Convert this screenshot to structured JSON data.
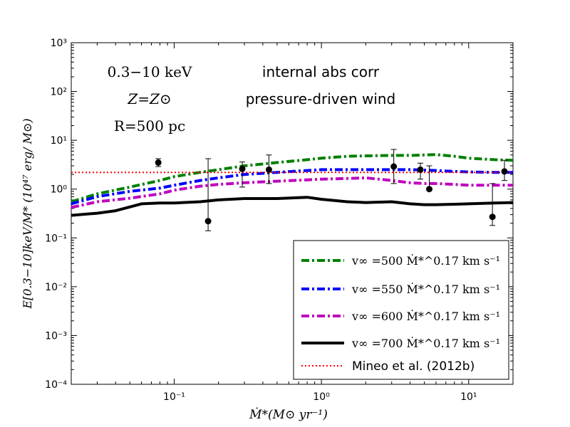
{
  "chart_data": {
    "type": "line",
    "x_scale": "log",
    "y_scale": "log",
    "xlim": [
      0.02,
      20
    ],
    "ylim": [
      0.0001,
      1000
    ],
    "xlabel": "Ṁ*(M⊙ yr⁻¹)",
    "ylabel": "E[0.3−10]keV/M* (10⁴⁷ erg/ M⊙)",
    "x_ticks": [
      "10⁻¹",
      "10⁰",
      "10¹"
    ],
    "y_ticks": [
      "10⁻⁴",
      "10⁻³",
      "10⁻²",
      "10⁻¹",
      "10⁰",
      "10¹",
      "10²",
      "10³"
    ],
    "annotations": {
      "band": "0.3−10 keV",
      "metallicity": "Z=Z⊙",
      "radius": "R=500 pc",
      "absorption": "internal abs corr",
      "wind": "pressure-driven wind"
    },
    "legend_position": "lower-right",
    "series": [
      {
        "name": "v∞ =500 Ṁ*^0.17 km s⁻¹",
        "color": "#008000",
        "dash": "dashdot",
        "x": [
          0.02,
          0.03,
          0.05,
          0.08,
          0.1,
          0.15,
          0.2,
          0.3,
          0.5,
          0.8,
          1.0,
          1.5,
          2.0,
          3.0,
          4.0,
          5.0,
          6.0,
          8.0,
          10.0,
          15.0,
          20.0
        ],
        "y": [
          0.55,
          0.8,
          1.1,
          1.5,
          1.8,
          2.2,
          2.5,
          3.0,
          3.5,
          4.0,
          4.3,
          4.7,
          4.8,
          4.9,
          4.9,
          5.0,
          5.1,
          4.7,
          4.3,
          4.0,
          3.9
        ]
      },
      {
        "name": "v∞ =550 Ṁ*^0.17 km s⁻¹",
        "color": "#0000ff",
        "dash": "dashdot",
        "x": [
          0.02,
          0.03,
          0.05,
          0.08,
          0.1,
          0.15,
          0.2,
          0.3,
          0.5,
          0.8,
          1.0,
          1.5,
          2.0,
          3.0,
          4.0,
          5.0,
          6.0,
          8.0,
          10.0,
          15.0,
          20.0
        ],
        "y": [
          0.5,
          0.7,
          0.9,
          1.05,
          1.2,
          1.5,
          1.7,
          2.0,
          2.2,
          2.4,
          2.5,
          2.5,
          2.5,
          2.5,
          2.5,
          2.45,
          2.4,
          2.3,
          2.25,
          2.2,
          2.2
        ]
      },
      {
        "name": "v∞ =600 Ṁ*^0.17 km s⁻¹",
        "color": "#bf00bf",
        "dash": "dashdot",
        "x": [
          0.02,
          0.03,
          0.05,
          0.08,
          0.1,
          0.15,
          0.2,
          0.3,
          0.5,
          0.8,
          1.0,
          1.5,
          2.0,
          3.0,
          4.0,
          5.0,
          6.0,
          8.0,
          10.0,
          15.0,
          20.0
        ],
        "y": [
          0.42,
          0.55,
          0.65,
          0.8,
          0.95,
          1.15,
          1.25,
          1.35,
          1.45,
          1.55,
          1.6,
          1.65,
          1.7,
          1.5,
          1.35,
          1.3,
          1.3,
          1.25,
          1.2,
          1.2,
          1.2
        ]
      },
      {
        "name": "v∞ =700 Ṁ*^0.17 km s⁻¹",
        "color": "#000000",
        "dash": "solid",
        "x": [
          0.02,
          0.03,
          0.04,
          0.05,
          0.06,
          0.08,
          0.1,
          0.15,
          0.2,
          0.3,
          0.5,
          0.8,
          1.0,
          1.5,
          2.0,
          3.0,
          4.0,
          5.0,
          6.0,
          8.0,
          10.0,
          15.0,
          20.0
        ],
        "y": [
          0.29,
          0.32,
          0.36,
          0.43,
          0.5,
          0.52,
          0.52,
          0.55,
          0.6,
          0.64,
          0.64,
          0.68,
          0.62,
          0.55,
          0.53,
          0.55,
          0.5,
          0.48,
          0.48,
          0.49,
          0.5,
          0.52,
          0.53
        ]
      },
      {
        "name": "Mineo et al. (2012b)",
        "color": "#ff0000",
        "dash": "dotted",
        "x": [
          0.02,
          20.0
        ],
        "y": [
          2.2,
          2.2
        ]
      }
    ],
    "points": [
      {
        "x": 0.078,
        "y": 3.5,
        "ylo": 2.9,
        "yhi": 4.2
      },
      {
        "x": 0.17,
        "y": 0.22,
        "ylo": 0.14,
        "yhi": 4.2
      },
      {
        "x": 0.29,
        "y": 2.6,
        "ylo": 1.1,
        "yhi": 3.6
      },
      {
        "x": 0.44,
        "y": 2.5,
        "ylo": 1.3,
        "yhi": 5.0
      },
      {
        "x": 3.1,
        "y": 2.9,
        "ylo": 1.3,
        "yhi": 6.5
      },
      {
        "x": 4.7,
        "y": 2.5,
        "ylo": 1.6,
        "yhi": 3.4
      },
      {
        "x": 5.4,
        "y": 1.0,
        "ylo": 0.97,
        "yhi": 3.0
      },
      {
        "x": 14.5,
        "y": 0.27,
        "ylo": 0.18,
        "yhi": 1.3
      },
      {
        "x": 17.5,
        "y": 2.3,
        "ylo": 1.5,
        "yhi": 3.9
      }
    ]
  }
}
